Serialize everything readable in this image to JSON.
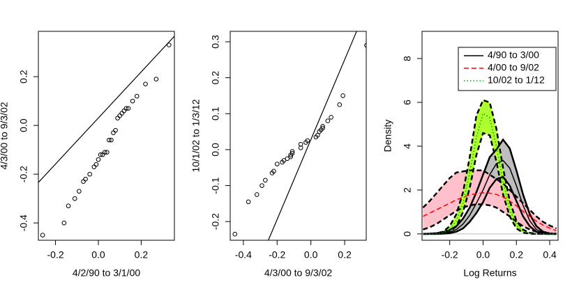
{
  "chart_data": [
    {
      "type": "scatter",
      "xlabel": "4/2/90 to 3/1/00",
      "ylabel": "4/3/00 to 9/3/02",
      "x": [
        -0.26,
        -0.16,
        -0.14,
        -0.11,
        -0.09,
        -0.07,
        -0.06,
        -0.04,
        -0.02,
        -0.01,
        0.0,
        0.01,
        0.02,
        0.03,
        0.04,
        0.05,
        0.06,
        0.07,
        0.08,
        0.09,
        0.1,
        0.11,
        0.12,
        0.13,
        0.14,
        0.16,
        0.18,
        0.22,
        0.27,
        0.33
      ],
      "values": [
        -0.45,
        -0.4,
        -0.33,
        -0.3,
        -0.27,
        -0.23,
        -0.22,
        -0.2,
        -0.17,
        -0.16,
        -0.14,
        -0.12,
        -0.12,
        -0.11,
        -0.11,
        -0.06,
        -0.06,
        -0.03,
        -0.02,
        0.03,
        0.04,
        0.05,
        0.06,
        0.07,
        0.07,
        0.1,
        0.12,
        0.17,
        0.19,
        0.33
      ],
      "color": "#000000",
      "reference_line": {
        "x": [
          -0.28,
          0.355
        ],
        "y": [
          -0.234,
          0.366
        ]
      },
      "xlim": [
        -0.28,
        0.355
      ],
      "ylim": [
        -0.471,
        0.386
      ],
      "xticks": [
        -0.2,
        {
          "value": 0,
          "label": "0.0"
        },
        0.2
      ],
      "yticks": [
        -0.4,
        -0.2,
        {
          "value": 0,
          "label": "0.0"
        },
        0.2
      ]
    },
    {
      "type": "scatter",
      "xlabel": "4/3/00 to 9/3/02",
      "ylabel": "10/1/02 to 1/3/12",
      "x": [
        -0.45,
        -0.37,
        -0.32,
        -0.29,
        -0.27,
        -0.23,
        -0.22,
        -0.2,
        -0.17,
        -0.16,
        -0.14,
        -0.12,
        -0.12,
        -0.11,
        -0.11,
        -0.06,
        -0.06,
        -0.03,
        -0.02,
        0.03,
        0.04,
        0.05,
        0.06,
        0.07,
        0.07,
        0.1,
        0.12,
        0.17,
        0.19,
        0.33
      ],
      "values": [
        -0.235,
        -0.145,
        -0.125,
        -0.1,
        -0.085,
        -0.065,
        -0.06,
        -0.04,
        -0.035,
        -0.03,
        -0.025,
        -0.02,
        -0.015,
        -0.01,
        -0.005,
        0.005,
        0.015,
        0.02,
        0.025,
        0.035,
        0.04,
        0.05,
        0.055,
        0.06,
        0.065,
        0.08,
        0.09,
        0.125,
        0.15,
        0.29
      ],
      "color": "#000000",
      "reference_line": {
        "x": [
          -0.252,
          0.271
        ],
        "y": [
          -0.252,
          0.329
        ]
      },
      "xlim": [
        -0.478,
        0.328
      ],
      "ylim": [
        -0.252,
        0.329
      ],
      "xticks": [
        -0.4,
        -0.2,
        {
          "value": 0,
          "label": "0.0"
        },
        0.2
      ],
      "yticks": [
        -0.2,
        -0.1,
        {
          "value": 0,
          "label": "0.0"
        },
        0.1,
        0.2,
        0.3
      ]
    },
    {
      "type": "density",
      "xlabel": "Log Returns",
      "ylabel": "Density",
      "legend": "top-right",
      "x": [
        -0.36,
        -0.32,
        -0.28,
        -0.24,
        -0.2,
        -0.16,
        -0.12,
        -0.08,
        -0.04,
        0.0,
        0.04,
        0.08,
        0.12,
        0.16,
        0.2,
        0.24,
        0.28,
        0.32,
        0.36,
        0.4,
        0.44
      ],
      "series": [
        {
          "name": "4/90 to 3/00",
          "color": "#000000",
          "linestyle": "solid",
          "band_color": "#bebebe",
          "band_edge": "solid",
          "values": [
            0,
            0,
            0.01,
            0.03,
            0.08,
            0.2,
            0.45,
            0.85,
            1.4,
            2.0,
            2.7,
            3.2,
            3.35,
            3.0,
            2.2,
            1.3,
            0.6,
            0.2,
            0.06,
            0.01,
            0
          ],
          "lower": [
            0,
            0,
            0,
            0.01,
            0.03,
            0.1,
            0.25,
            0.55,
            0.95,
            1.45,
            2.1,
            2.5,
            2.6,
            2.2,
            1.5,
            0.8,
            0.35,
            0.1,
            0.03,
            0,
            0
          ],
          "upper": [
            0,
            0.01,
            0.03,
            0.08,
            0.18,
            0.35,
            0.7,
            1.2,
            1.9,
            2.7,
            3.5,
            3.85,
            4.3,
            3.9,
            2.9,
            1.8,
            0.9,
            0.35,
            0.1,
            0.02,
            0
          ]
        },
        {
          "name": "4/00 to 9/02",
          "color": "#ff0000",
          "linestyle": "dashed",
          "band_color": "#ffc0cb",
          "band_edge": "dashed",
          "values": [
            0.8,
            0.95,
            1.1,
            1.25,
            1.4,
            1.55,
            1.68,
            1.78,
            1.84,
            1.87,
            1.86,
            1.8,
            1.68,
            1.5,
            1.28,
            1.03,
            0.8,
            0.58,
            0.4,
            0.26,
            0.15
          ],
          "lower": [
            0.2,
            0.3,
            0.45,
            0.65,
            0.85,
            1.05,
            1.2,
            1.3,
            1.35,
            1.35,
            1.3,
            1.2,
            1.0,
            0.8,
            0.55,
            0.35,
            0.2,
            0.1,
            0.05,
            0.02,
            0.01
          ],
          "upper": [
            1.2,
            1.5,
            1.85,
            2.2,
            2.55,
            2.8,
            2.85,
            2.9,
            2.9,
            2.9,
            2.7,
            2.5,
            2.3,
            2.0,
            1.7,
            1.4,
            1.1,
            0.8,
            0.55,
            0.38,
            0.25
          ]
        },
        {
          "name": "10/02 to 1/12",
          "color": "#00a000",
          "linestyle": "dotted",
          "band_color": "#adff2f",
          "band_edge": "dashed",
          "values": [
            0,
            0,
            0.01,
            0.05,
            0.2,
            0.6,
            1.4,
            2.8,
            4.4,
            5.5,
            5.3,
            4.0,
            2.4,
            1.1,
            0.4,
            0.12,
            0.03,
            0.01,
            0,
            0,
            0
          ],
          "lower": [
            0,
            0,
            0,
            0.02,
            0.1,
            0.35,
            1.0,
            2.1,
            3.6,
            4.6,
            4.5,
            3.3,
            1.8,
            0.8,
            0.25,
            0.06,
            0.01,
            0,
            0,
            0,
            0
          ],
          "upper": [
            0,
            0,
            0.03,
            0.1,
            0.35,
            0.9,
            1.9,
            3.5,
            5.4,
            6.1,
            6.0,
            4.8,
            3.0,
            1.5,
            0.6,
            0.2,
            0.05,
            0.01,
            0,
            0,
            0
          ]
        }
      ],
      "xlim": [
        -0.366,
        0.45
      ],
      "ylim": [
        -0.29,
        9.24
      ],
      "xticks": [
        -0.2,
        {
          "value": 0,
          "label": "0.0"
        },
        0.2,
        0.4
      ],
      "yticks": [
        0,
        2,
        4,
        6,
        8
      ]
    }
  ]
}
